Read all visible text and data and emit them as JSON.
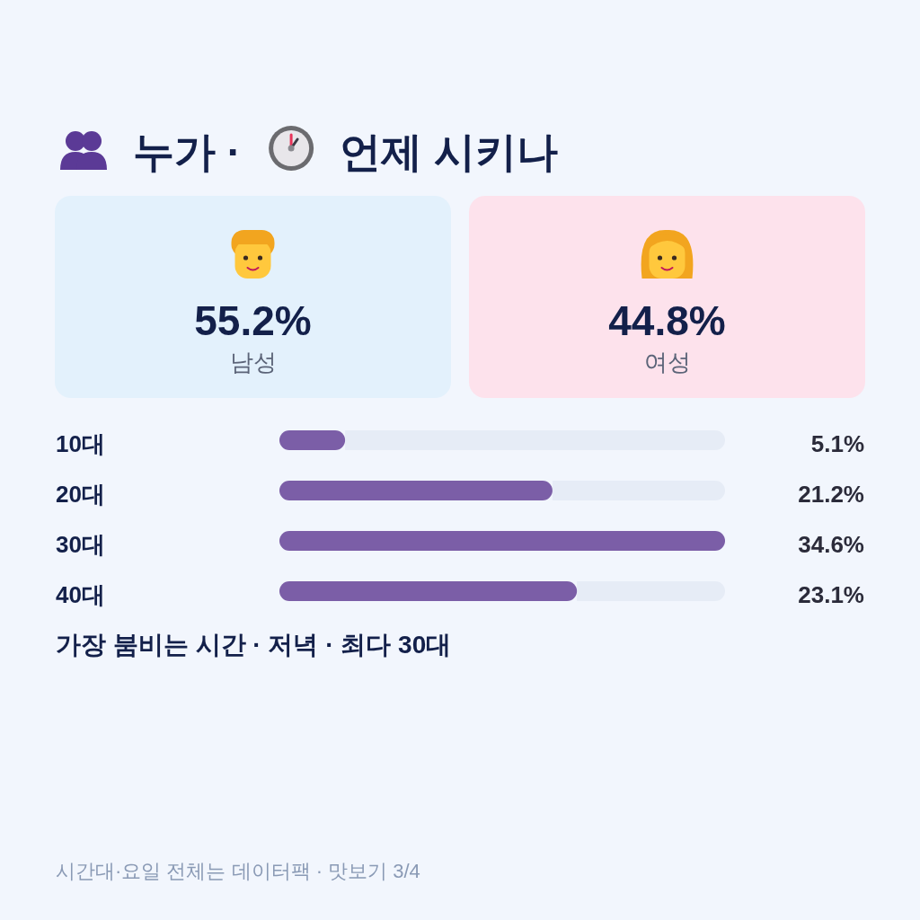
{
  "chart_data": [
    {
      "type": "other",
      "title": "누가 · 언제 시키나",
      "categories": [
        "남성",
        "여성"
      ],
      "value_labels": [
        "55.2%",
        "44.8%"
      ],
      "colors": [
        "#e3f1fc",
        "#fde2ec"
      ]
    },
    {
      "type": "bar",
      "orientation": "horizontal",
      "categories": [
        "10대",
        "20대",
        "30대",
        "40대"
      ],
      "values": [
        5.1,
        21.2,
        34.6,
        23.1
      ],
      "value_labels": [
        "5.1%",
        "21.2%",
        "34.6%",
        "23.1%"
      ],
      "color": "#7b5ea7",
      "annotations": [
        "가장 붐비는 시간 · 저녁 · 최다 30대",
        "시간대·요일 전체는 데이터팩 · 맛보기 3/4"
      ]
    }
  ]
}
